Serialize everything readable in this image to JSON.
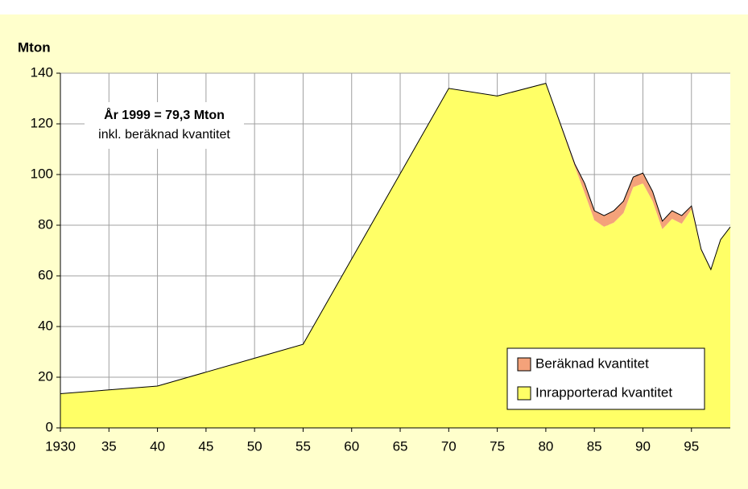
{
  "chart_data": {
    "type": "stacked-area",
    "y_label": "Mton",
    "annotation": [
      "År 1999 =  79,3 Mton",
      "inkl. beräknad kvantitet"
    ],
    "x": [
      1930,
      1935,
      1940,
      1945,
      1950,
      1955,
      1970,
      1975,
      1980,
      1983,
      1984,
      1985,
      1986,
      1987,
      1988,
      1989,
      1990,
      1991,
      1992,
      1993,
      1994,
      1995,
      1996,
      1997,
      1998,
      1999
    ],
    "series": [
      {
        "name": "Inrapporterad kvantitet",
        "color": "#ffff66",
        "values": [
          13.5,
          15,
          16.5,
          22,
          27.5,
          33,
          134,
          131,
          136,
          103,
          92.7,
          82,
          79.4,
          81,
          84.8,
          95,
          96.5,
          89.5,
          78.4,
          82.5,
          80.6,
          86.3,
          70,
          62.5,
          74.3,
          79.3
        ]
      },
      {
        "name": "Beräknad kvantitet",
        "color": "#f4a27a",
        "values": [
          0,
          0,
          0,
          0,
          0,
          0,
          0,
          0,
          0,
          1,
          3.8,
          3.7,
          4.4,
          4.7,
          4.7,
          4,
          4.1,
          3.8,
          3.2,
          3.2,
          3.2,
          1.3,
          0.5,
          0,
          0,
          0
        ]
      }
    ],
    "xlim": [
      1930,
      1999
    ],
    "xticks": [
      1930,
      {
        "value": 1935,
        "label": "35"
      },
      {
        "value": 1940,
        "label": "40"
      },
      {
        "value": 1945,
        "label": "45"
      },
      {
        "value": 1950,
        "label": "50"
      },
      {
        "value": 1955,
        "label": "55"
      },
      {
        "value": 1960,
        "label": "60"
      },
      {
        "value": 1965,
        "label": "65"
      },
      {
        "value": 1970,
        "label": "70"
      },
      {
        "value": 1975,
        "label": "75"
      },
      {
        "value": 1980,
        "label": "80"
      },
      {
        "value": 1985,
        "label": "85"
      },
      {
        "value": 1990,
        "label": "90"
      },
      {
        "value": 1995,
        "label": "95"
      }
    ],
    "ylim": [
      0,
      140
    ],
    "yticks": [
      0,
      20,
      40,
      60,
      80,
      100,
      120,
      140
    ],
    "grid": true
  }
}
